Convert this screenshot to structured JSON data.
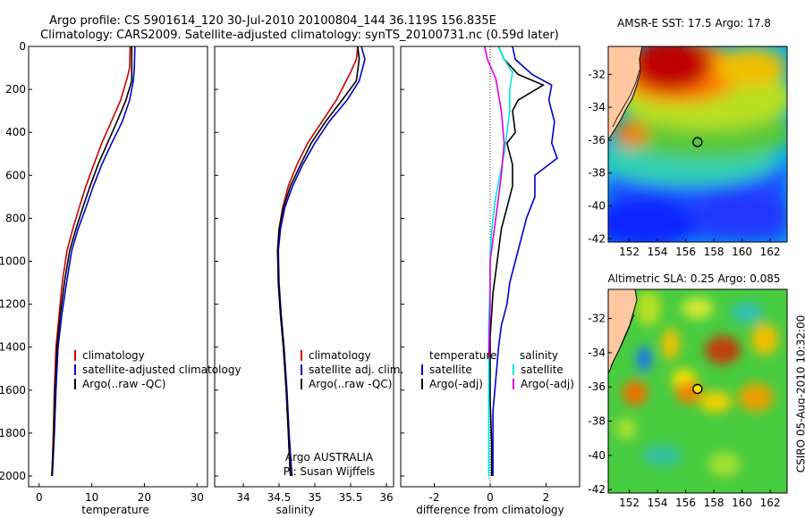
{
  "header": {
    "title_line1": "Argo profile: CS 5901614_120 30-Jul-2010 20100804_144 36.119S 156.835E",
    "title_line2": "Climatology: CARS2009. Satellite-adjusted climatology: synTS_20100731.nc (0.59d later)"
  },
  "colors": {
    "climatology": "#cc0000",
    "satellite": "#0000cc",
    "argo": "#000000",
    "cyan": "#00e5e5",
    "magenta": "#e000e0"
  },
  "credits": {
    "argo_australia": "Argo AUSTRALIA",
    "pi": "PI: Susan Wijffels",
    "csiro_stamp": "CSIRO 05-Aug-2010 10:32:00"
  },
  "chart_data": [
    {
      "id": "temperature",
      "type": "line",
      "xlabel": "temperature",
      "xlim": [
        -2,
        32
      ],
      "ylim": [
        0,
        2050
      ],
      "xticks": [
        0,
        10,
        20,
        30
      ],
      "yticks": [
        0,
        200,
        400,
        600,
        800,
        1000,
        1200,
        1400,
        1600,
        1800,
        2000
      ],
      "legend": [
        "climatology",
        "satellite-adjusted climatology",
        "Argo(..raw -QC)"
      ],
      "series": [
        {
          "name": "climatology",
          "color": "#cc0000",
          "x": [
            17.3,
            17.2,
            16.7,
            15.5,
            13.7,
            11.9,
            10.4,
            8.9,
            7.6,
            6.4,
            5.3,
            4.4,
            3.8,
            3.2,
            2.9,
            2.7,
            2.5,
            2.4
          ],
          "y": [
            0,
            100,
            150,
            250,
            350,
            450,
            550,
            650,
            750,
            850,
            950,
            1100,
            1250,
            1400,
            1600,
            1800,
            1950,
            2000
          ]
        },
        {
          "name": "satellite-adjusted climatology",
          "color": "#0000cc",
          "x": [
            18.2,
            18.1,
            17.9,
            17.2,
            15.8,
            13.8,
            11.9,
            10.3,
            8.9,
            7.4,
            6.2,
            5.2,
            4.3,
            3.6,
            3.2,
            2.9,
            2.6,
            2.5
          ],
          "y": [
            0,
            100,
            160,
            250,
            350,
            450,
            550,
            650,
            750,
            850,
            950,
            1100,
            1250,
            1400,
            1600,
            1800,
            1950,
            2000
          ]
        },
        {
          "name": "Argo(..raw -QC)",
          "color": "#000000",
          "x": [
            17.6,
            17.6,
            17.6,
            16.5,
            14.8,
            13.0,
            11.2,
            9.7,
            8.3,
            7.0,
            5.8,
            4.8,
            4.0,
            3.4,
            3.0,
            2.8,
            2.5,
            2.4
          ],
          "y": [
            0,
            100,
            160,
            250,
            350,
            450,
            550,
            650,
            750,
            850,
            950,
            1100,
            1250,
            1400,
            1600,
            1800,
            1950,
            2000
          ]
        }
      ]
    },
    {
      "id": "salinity",
      "type": "line",
      "xlabel": "salinity",
      "xlim": [
        33.6,
        36.1
      ],
      "ylim": [
        0,
        2050
      ],
      "xticks": [
        34,
        34.5,
        35,
        35.5,
        36
      ],
      "xticklabels": [
        "34",
        "34.5",
        "35",
        "35.5",
        "36"
      ],
      "legend": [
        "climatology",
        "satellite adj. clim.",
        "Argo(..raw -QC)"
      ],
      "series": [
        {
          "name": "climatology",
          "color": "#cc0000",
          "x": [
            35.6,
            35.58,
            35.5,
            35.3,
            35.1,
            34.9,
            34.75,
            34.63,
            34.55,
            34.5,
            34.48,
            34.49,
            34.52,
            34.56,
            34.6,
            34.63,
            34.65,
            34.66
          ],
          "y": [
            0,
            60,
            120,
            250,
            350,
            450,
            550,
            650,
            750,
            850,
            950,
            1100,
            1250,
            1400,
            1600,
            1800,
            1950,
            2000
          ]
        },
        {
          "name": "satellite adj. clim.",
          "color": "#0000cc",
          "x": [
            35.65,
            35.7,
            35.62,
            35.45,
            35.2,
            35.0,
            34.83,
            34.69,
            34.58,
            34.52,
            34.49,
            34.5,
            34.53,
            34.57,
            34.61,
            34.64,
            34.67,
            34.68
          ],
          "y": [
            0,
            60,
            160,
            250,
            350,
            450,
            550,
            650,
            750,
            850,
            950,
            1100,
            1250,
            1400,
            1600,
            1800,
            1950,
            2000
          ]
        },
        {
          "name": "Argo(..raw -QC)",
          "color": "#000000",
          "x": [
            35.6,
            35.62,
            35.58,
            35.38,
            35.15,
            34.95,
            34.8,
            34.66,
            34.56,
            34.5,
            34.48,
            34.49,
            34.52,
            34.56,
            34.6,
            34.63,
            34.65,
            34.66
          ],
          "y": [
            0,
            60,
            160,
            250,
            350,
            450,
            550,
            650,
            750,
            850,
            950,
            1100,
            1250,
            1400,
            1600,
            1800,
            1950,
            2000
          ]
        }
      ]
    },
    {
      "id": "difference",
      "type": "line",
      "xlabel": "difference from climatology",
      "xlim": [
        -3.2,
        3.2
      ],
      "ylim": [
        0,
        2050
      ],
      "xticks": [
        -2,
        0,
        2
      ],
      "legend_temperature": {
        "header": "temperature",
        "items": [
          "satellite",
          "Argo(-adj)"
        ]
      },
      "legend_salinity": {
        "header": "salinity",
        "items": [
          "satellite",
          "Argo(-adj)"
        ]
      },
      "series": [
        {
          "name": "temperature satellite",
          "color": "#0000cc",
          "x": [
            0.8,
            0.9,
            1.5,
            2.2,
            2.1,
            2.3,
            2.2,
            2.4,
            1.6,
            1.6,
            1.3,
            1.1,
            0.9,
            0.7,
            0.6,
            0.4,
            0.3,
            0.2,
            0.1,
            0.1,
            0.1
          ],
          "y": [
            0,
            60,
            130,
            180,
            250,
            350,
            450,
            520,
            600,
            700,
            800,
            900,
            1000,
            1100,
            1200,
            1300,
            1400,
            1550,
            1700,
            1850,
            2000
          ]
        },
        {
          "name": "temperature Argo(-adj)",
          "color": "#000000",
          "x": [
            0.3,
            0.5,
            1.0,
            1.9,
            1.0,
            0.8,
            0.9,
            0.6,
            0.8,
            0.8,
            0.6,
            0.4,
            0.3,
            0.2,
            0.1,
            0.05,
            0.0,
            0.0,
            0.0,
            0.05,
            0.05
          ],
          "y": [
            0,
            60,
            130,
            180,
            250,
            300,
            400,
            450,
            550,
            650,
            750,
            850,
            950,
            1050,
            1150,
            1250,
            1350,
            1500,
            1650,
            1850,
            2000
          ]
        },
        {
          "name": "salinity satellite",
          "color": "#00e5e5",
          "x": [
            0.3,
            0.5,
            0.8,
            0.7,
            0.7,
            0.6,
            0.5,
            0.35,
            0.2,
            0.1,
            0.0,
            0.0,
            -0.05,
            -0.05,
            -0.05
          ],
          "y": [
            0,
            60,
            120,
            200,
            300,
            400,
            500,
            600,
            700,
            800,
            950,
            1100,
            1300,
            1600,
            2000
          ]
        },
        {
          "name": "salinity Argo(-adj)",
          "color": "#e000e0",
          "x": [
            -0.2,
            -0.1,
            0.2,
            0.4,
            0.5,
            0.4,
            0.3,
            0.2,
            0.1,
            0.0,
            0.0,
            -0.05
          ],
          "y": [
            0,
            60,
            150,
            300,
            450,
            600,
            700,
            800,
            900,
            1000,
            1200,
            1450
          ]
        }
      ]
    },
    {
      "id": "sst_map",
      "type": "heatmap",
      "title": "AMSR-E SST: 17.5 Argo: 17.8",
      "xlim": [
        150.5,
        163.2
      ],
      "ylim": [
        -42.2,
        -30.3
      ],
      "xticks": [
        152,
        154,
        156,
        158,
        160,
        162
      ],
      "yticks": [
        -32,
        -34,
        -36,
        -38,
        -40,
        -42
      ],
      "marker": {
        "lon": 156.835,
        "lat": -36.119
      }
    },
    {
      "id": "sla_map",
      "type": "heatmap",
      "title": "Altimetric SLA: 0.25 Argo: 0.085",
      "xlim": [
        150.5,
        163.2
      ],
      "ylim": [
        -42.2,
        -30.3
      ],
      "xticks": [
        152,
        154,
        156,
        158,
        160,
        162
      ],
      "yticks": [
        -32,
        -34,
        -36,
        -38,
        -40,
        -42
      ],
      "marker": {
        "lon": 156.835,
        "lat": -36.119
      }
    }
  ]
}
